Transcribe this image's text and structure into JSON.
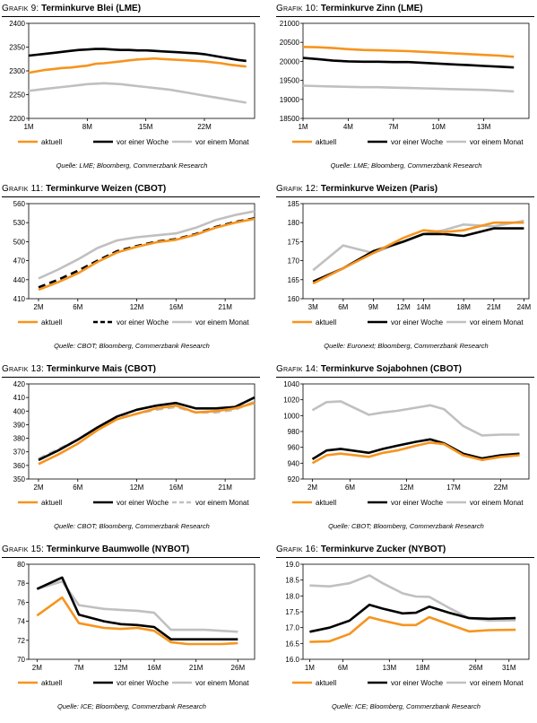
{
  "colors": {
    "aktuell": "#F7941D",
    "week": "#000000",
    "month": "#C0C0C0"
  },
  "chart_data": [
    {
      "type": "line",
      "label": "Grafik 9:",
      "title": "Terminkurve Blei (LME)",
      "source": "Quelle: LME; Bloomberg, Commerzbank Research",
      "ylim": [
        2200,
        2400
      ],
      "yticks": [
        2200,
        2250,
        2300,
        2350,
        2400
      ],
      "xlim": [
        1,
        28
      ],
      "xticks": [
        {
          "x": 1,
          "label": "1M"
        },
        {
          "x": 8,
          "label": "8M"
        },
        {
          "x": 15,
          "label": "15M"
        },
        {
          "x": 22,
          "label": "22M"
        }
      ],
      "x": [
        1,
        2,
        3,
        4,
        5,
        6,
        7,
        8,
        9,
        10,
        11,
        12,
        13,
        14,
        15,
        16,
        17,
        18,
        19,
        20,
        21,
        22,
        23,
        24,
        25,
        26,
        27
      ],
      "series": [
        {
          "name": "aktuell",
          "color": "#F7941D",
          "style": "solid",
          "values": [
            2296,
            2299,
            2302,
            2304,
            2306,
            2307,
            2309,
            2311,
            2315,
            2316,
            2318,
            2320,
            2322,
            2324,
            2325,
            2326,
            2325,
            2324,
            2323,
            2322,
            2321,
            2320,
            2318,
            2316,
            2313,
            2311,
            2309
          ]
        },
        {
          "name": "vor einer Woche",
          "color": "#000000",
          "style": "solid",
          "values": [
            2332,
            2334,
            2336,
            2338,
            2340,
            2342,
            2344,
            2345,
            2346,
            2346,
            2345,
            2344,
            2344,
            2343,
            2343,
            2342,
            2341,
            2340,
            2339,
            2338,
            2337,
            2335,
            2332,
            2329,
            2326,
            2323,
            2321
          ]
        },
        {
          "name": "vor einem Monat",
          "color": "#C0C0C0",
          "style": "solid",
          "values": [
            2258,
            2260,
            2262,
            2264,
            2266,
            2268,
            2270,
            2272,
            2273,
            2274,
            2273,
            2272,
            2270,
            2268,
            2266,
            2264,
            2262,
            2260,
            2257,
            2254,
            2251,
            2248,
            2245,
            2242,
            2239,
            2236,
            2233
          ]
        }
      ]
    },
    {
      "type": "line",
      "label": "Grafik 10:",
      "title": "Terminkurve Zinn (LME)",
      "source": "Quelle: LME; Bloomberg, Commerzbank Research",
      "ylim": [
        18500,
        21000
      ],
      "yticks": [
        18500,
        19000,
        19500,
        20000,
        20500,
        21000
      ],
      "xlim": [
        1,
        16
      ],
      "xticks": [
        {
          "x": 1,
          "label": "1M"
        },
        {
          "x": 4,
          "label": "4M"
        },
        {
          "x": 7,
          "label": "7M"
        },
        {
          "x": 10,
          "label": "10M"
        },
        {
          "x": 13,
          "label": "13M"
        }
      ],
      "x": [
        1,
        2,
        3,
        4,
        5,
        6,
        7,
        8,
        9,
        10,
        11,
        12,
        13,
        14,
        15
      ],
      "series": [
        {
          "name": "aktuell",
          "color": "#F7941D",
          "style": "solid",
          "values": [
            20380,
            20370,
            20350,
            20320,
            20300,
            20290,
            20280,
            20270,
            20250,
            20230,
            20210,
            20190,
            20170,
            20150,
            20120
          ]
        },
        {
          "name": "vor einer Woche",
          "color": "#000000",
          "style": "solid",
          "values": [
            20090,
            20060,
            20020,
            20000,
            19990,
            19990,
            19980,
            19980,
            19960,
            19940,
            19920,
            19900,
            19880,
            19860,
            19840
          ]
        },
        {
          "name": "vor einem Monat",
          "color": "#C0C0C0",
          "style": "solid",
          "values": [
            19360,
            19350,
            19340,
            19330,
            19320,
            19320,
            19310,
            19300,
            19290,
            19280,
            19270,
            19260,
            19250,
            19230,
            19210
          ]
        }
      ]
    },
    {
      "type": "line",
      "label": "Grafik 11:",
      "title": "Terminkurve Weizen (CBOT)",
      "source": "Quelle: CBOT; Bloomberg, Commerzbank Research",
      "ylim": [
        410,
        560
      ],
      "yticks": [
        410,
        440,
        470,
        500,
        530,
        560
      ],
      "xlim": [
        1,
        24
      ],
      "xticks": [
        {
          "x": 2,
          "label": "2M"
        },
        {
          "x": 6,
          "label": "6M"
        },
        {
          "x": 12,
          "label": "12M"
        },
        {
          "x": 16,
          "label": "16M"
        },
        {
          "x": 21,
          "label": "21M"
        }
      ],
      "x": [
        2,
        4,
        6,
        8,
        10,
        12,
        14,
        16,
        18,
        20,
        22,
        24
      ],
      "series": [
        {
          "name": "aktuell",
          "color": "#F7941D",
          "style": "solid",
          "values": [
            424,
            436,
            450,
            468,
            483,
            492,
            499,
            503,
            511,
            522,
            530,
            536
          ]
        },
        {
          "name": "vor einer Woche",
          "color": "#000000",
          "style": "dashed",
          "values": [
            428,
            440,
            454,
            470,
            485,
            493,
            500,
            504,
            512,
            523,
            531,
            537
          ]
        },
        {
          "name": "vor einem Monat",
          "color": "#C0C0C0",
          "style": "solid",
          "values": [
            442,
            456,
            472,
            490,
            502,
            507,
            510,
            513,
            522,
            534,
            542,
            548
          ]
        }
      ]
    },
    {
      "type": "line",
      "label": "Grafik 12:",
      "title": "Terminkurve Weizen (Paris)",
      "source": "Quelle: Euronext; Bloomberg, Commerzbank Research",
      "ylim": [
        160,
        185
      ],
      "yticks": [
        160,
        165,
        170,
        175,
        180,
        185
      ],
      "xlim": [
        2,
        24.5
      ],
      "xticks": [
        {
          "x": 3,
          "label": "3M"
        },
        {
          "x": 6,
          "label": "6M"
        },
        {
          "x": 9,
          "label": "9M"
        },
        {
          "x": 12,
          "label": "12M"
        },
        {
          "x": 14,
          "label": "14M"
        },
        {
          "x": 18,
          "label": "18M"
        },
        {
          "x": 21,
          "label": "21M"
        },
        {
          "x": 24,
          "label": "24M"
        }
      ],
      "x": [
        3,
        6,
        9,
        12,
        14,
        16,
        18,
        21,
        24
      ],
      "series": [
        {
          "name": "aktuell",
          "color": "#F7941D",
          "style": "solid",
          "values": [
            164,
            168,
            172,
            176,
            178,
            177.5,
            178,
            180,
            180
          ]
        },
        {
          "name": "vor einer Woche",
          "color": "#000000",
          "style": "solid",
          "values": [
            164.5,
            168,
            172.5,
            175,
            177,
            177,
            176.5,
            178.5,
            178.5
          ]
        },
        {
          "name": "vor einem Monat",
          "color": "#C0C0C0",
          "style": "solid",
          "values": [
            167.5,
            174,
            172,
            175,
            177,
            178,
            179.5,
            179,
            180.5
          ]
        }
      ]
    },
    {
      "type": "line",
      "label": "Grafik 13:",
      "title": "Terminkurve Mais (CBOT)",
      "source": "Quelle: CBOT; Bloomberg, Commerzbank Research",
      "ylim": [
        350,
        420
      ],
      "yticks": [
        350,
        360,
        370,
        380,
        390,
        400,
        410,
        420
      ],
      "xlim": [
        1,
        24
      ],
      "xticks": [
        {
          "x": 2,
          "label": "2M"
        },
        {
          "x": 6,
          "label": "6M"
        },
        {
          "x": 12,
          "label": "12M"
        },
        {
          "x": 16,
          "label": "16M"
        },
        {
          "x": 21,
          "label": "21M"
        }
      ],
      "x": [
        2,
        4,
        6,
        8,
        10,
        12,
        14,
        16,
        18,
        20,
        22,
        24
      ],
      "series": [
        {
          "name": "aktuell",
          "color": "#F7941D",
          "style": "solid",
          "values": [
            361,
            368,
            376,
            386,
            394,
            398,
            402,
            404,
            399,
            400,
            402,
            406
          ]
        },
        {
          "name": "vor einer Woche",
          "color": "#000000",
          "style": "solid",
          "values": [
            364,
            371,
            379,
            388,
            396,
            401,
            404,
            406,
            402,
            402,
            403,
            410
          ]
        },
        {
          "name": "vor einem Monat",
          "color": "#C0C0C0",
          "style": "dashed",
          "values": [
            365,
            372,
            379,
            388,
            395,
            398,
            401,
            403,
            399,
            399,
            401,
            407
          ]
        }
      ]
    },
    {
      "type": "line",
      "label": "Grafik 14:",
      "title": "Terminkurve Sojabohnen (CBOT)",
      "source": "Quelle: CBOT; Bloomberg, Commerzbank Research",
      "ylim": [
        920,
        1040
      ],
      "yticks": [
        920,
        940,
        960,
        980,
        1000,
        1020,
        1040
      ],
      "xlim": [
        1,
        25
      ],
      "xticks": [
        {
          "x": 2,
          "label": "2M"
        },
        {
          "x": 6,
          "label": "6M"
        },
        {
          "x": 12,
          "label": "12M"
        },
        {
          "x": 17,
          "label": "17M"
        },
        {
          "x": 22,
          "label": "22M"
        }
      ],
      "x": [
        2,
        3.5,
        5,
        8,
        9.5,
        11,
        13,
        14.5,
        16,
        18,
        20,
        22,
        24
      ],
      "series": [
        {
          "name": "aktuell",
          "color": "#F7941D",
          "style": "solid",
          "values": [
            940,
            950,
            952,
            948,
            953,
            956,
            962,
            966,
            964,
            950,
            944,
            948,
            950
          ]
        },
        {
          "name": "vor einer Woche",
          "color": "#000000",
          "style": "solid",
          "values": [
            945,
            956,
            958,
            953,
            958,
            962,
            967,
            970,
            965,
            952,
            946,
            950,
            952
          ]
        },
        {
          "name": "vor einem Monat",
          "color": "#C0C0C0",
          "style": "solid",
          "values": [
            1007,
            1017,
            1018,
            1001,
            1004,
            1006,
            1010,
            1013,
            1008,
            987,
            975,
            976,
            976
          ]
        }
      ]
    },
    {
      "type": "line",
      "label": "Grafik 15:",
      "title": "Terminkurve Baumwolle (NYBOT)",
      "source": "Quelle: ICE; Bloomberg, Commerzbank Research",
      "ylim": [
        70,
        80
      ],
      "yticks": [
        70,
        72,
        74,
        76,
        78,
        80
      ],
      "xlim": [
        1,
        28
      ],
      "xticks": [
        {
          "x": 2,
          "label": "2M"
        },
        {
          "x": 7,
          "label": "7M"
        },
        {
          "x": 12,
          "label": "12M"
        },
        {
          "x": 16,
          "label": "16M"
        },
        {
          "x": 21,
          "label": "21M"
        },
        {
          "x": 26,
          "label": "26M"
        }
      ],
      "x": [
        2,
        5,
        7,
        10,
        12,
        14,
        16,
        18,
        20,
        22,
        24,
        26
      ],
      "series": [
        {
          "name": "aktuell",
          "color": "#F7941D",
          "style": "solid",
          "values": [
            74.6,
            76.5,
            73.8,
            73.3,
            73.2,
            73.3,
            73.0,
            71.8,
            71.6,
            71.6,
            71.6,
            71.7
          ]
        },
        {
          "name": "vor einer Woche",
          "color": "#000000",
          "style": "solid",
          "values": [
            77.4,
            78.6,
            74.7,
            74.0,
            73.7,
            73.6,
            73.4,
            72.1,
            72.1,
            72.1,
            72.1,
            72.1
          ]
        },
        {
          "name": "vor einem Monat",
          "color": "#C0C0C0",
          "style": "solid",
          "values": [
            77.4,
            78.2,
            75.7,
            75.3,
            75.2,
            75.1,
            74.9,
            73.1,
            73.1,
            73.1,
            73.0,
            72.9
          ]
        }
      ]
    },
    {
      "type": "line",
      "label": "Grafik 16:",
      "title": "Terminkurve Zucker (NYBOT)",
      "source": "Quelle: ICE; Bloomberg, Commerzbank Research",
      "ylim": [
        16.0,
        19.0
      ],
      "yticks": [
        16.0,
        16.5,
        17.0,
        17.5,
        18.0,
        18.5,
        19.0
      ],
      "xlim": [
        0,
        34
      ],
      "xticks": [
        {
          "x": 1,
          "label": "1M"
        },
        {
          "x": 6,
          "label": "6M"
        },
        {
          "x": 13,
          "label": "13M"
        },
        {
          "x": 18,
          "label": "18M"
        },
        {
          "x": 26,
          "label": "26M"
        },
        {
          "x": 31,
          "label": "31M"
        }
      ],
      "x": [
        1,
        4,
        7,
        10,
        12,
        15,
        17,
        19,
        22,
        25,
        28,
        32
      ],
      "series": [
        {
          "name": "aktuell",
          "color": "#F7941D",
          "style": "solid",
          "values": [
            16.55,
            16.57,
            16.8,
            17.33,
            17.22,
            17.08,
            17.08,
            17.33,
            17.1,
            16.88,
            16.92,
            16.93
          ]
        },
        {
          "name": "vor einer Woche",
          "color": "#000000",
          "style": "solid",
          "values": [
            16.87,
            17.0,
            17.22,
            17.72,
            17.6,
            17.45,
            17.47,
            17.66,
            17.47,
            17.3,
            17.28,
            17.3
          ]
        },
        {
          "name": "vor einem Monat",
          "color": "#C0C0C0",
          "style": "solid",
          "values": [
            18.33,
            18.3,
            18.4,
            18.65,
            18.4,
            18.08,
            17.98,
            17.97,
            17.62,
            17.3,
            17.22,
            17.23
          ]
        }
      ]
    }
  ]
}
